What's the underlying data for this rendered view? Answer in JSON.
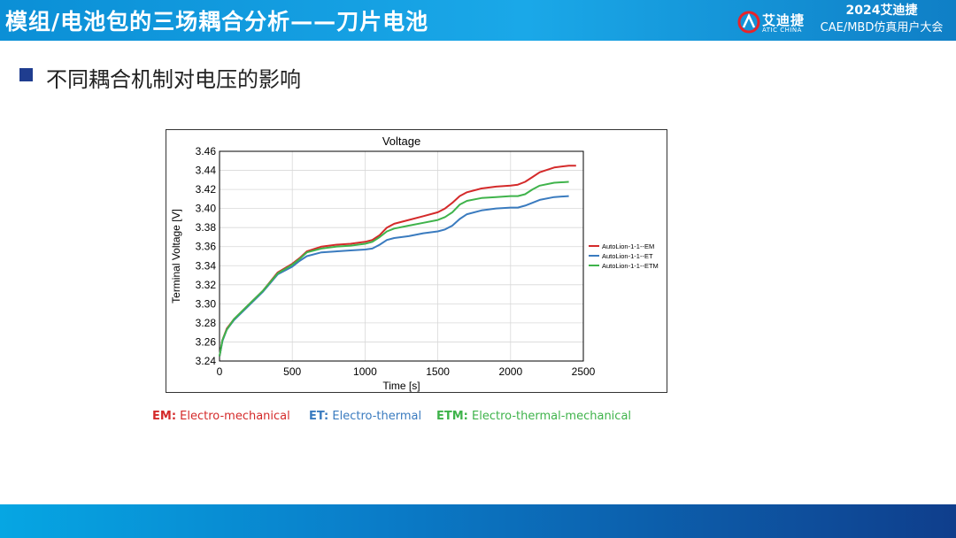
{
  "header": {
    "title": "模组/电池包的三场耦合分析——刀片电池",
    "logo_cn": "艾迪捷",
    "logo_en": "ATIC CHINA",
    "conference_year": "2024艾迪捷",
    "conference_name": "CAE/MBD仿真用户大会"
  },
  "section": {
    "heading": "不同耦合机制对电压的影响"
  },
  "colors": {
    "em": "#d42a2a",
    "et": "#3a7bbf",
    "etm": "#3fb34b",
    "header_blue": "#1aa8e8",
    "bullet": "#1f3d8f"
  },
  "notes": [
    {
      "abbr": "EM:",
      "text": "Electro-mechanical",
      "color": "#d42a2a"
    },
    {
      "abbr": "ET:",
      "text": "Electro-thermal",
      "color": "#3a7bbf"
    },
    {
      "abbr": "ETM:",
      "text": "Electro-thermal-mechanical",
      "color": "#3fb34b"
    }
  ],
  "chart_data": {
    "type": "line",
    "title": "Voltage",
    "xlabel": "Time [s]",
    "ylabel": "Terminal Voltage [V]",
    "xlim": [
      0,
      2500
    ],
    "ylim": [
      3.24,
      3.46
    ],
    "xticks": [
      "0",
      "500",
      "1000",
      "1500",
      "2000",
      "2500"
    ],
    "yticks": [
      "3.24",
      "3.26",
      "3.28",
      "3.30",
      "3.32",
      "3.34",
      "3.36",
      "3.38",
      "3.40",
      "3.42",
      "3.44",
      "3.46"
    ],
    "grid": true,
    "legend_position": "right",
    "x": [
      0,
      20,
      50,
      100,
      200,
      300,
      400,
      500,
      550,
      600,
      700,
      800,
      900,
      1000,
      1050,
      1100,
      1150,
      1200,
      1300,
      1400,
      1500,
      1550,
      1600,
      1650,
      1700,
      1800,
      1900,
      2000,
      2050,
      2100,
      2150,
      2200,
      2300,
      2400,
      2450
    ],
    "series": [
      {
        "name": "AutoLion-1-1--EM",
        "color": "#d42a2a",
        "values": [
          3.245,
          3.262,
          3.274,
          3.284,
          3.299,
          3.314,
          3.333,
          3.342,
          3.348,
          3.355,
          3.36,
          3.362,
          3.363,
          3.365,
          3.367,
          3.372,
          3.38,
          3.384,
          3.388,
          3.392,
          3.396,
          3.4,
          3.406,
          3.413,
          3.417,
          3.421,
          3.423,
          3.424,
          3.425,
          3.428,
          3.433,
          3.438,
          3.443,
          3.445,
          3.445
        ]
      },
      {
        "name": "AutoLion-1-1--ET",
        "color": "#3a7bbf",
        "values": [
          3.245,
          3.261,
          3.273,
          3.283,
          3.298,
          3.313,
          3.331,
          3.339,
          3.345,
          3.35,
          3.354,
          3.355,
          3.356,
          3.357,
          3.358,
          3.362,
          3.367,
          3.369,
          3.371,
          3.374,
          3.376,
          3.378,
          3.382,
          3.389,
          3.394,
          3.398,
          3.4,
          3.401,
          3.401,
          3.403,
          3.406,
          3.409,
          3.412,
          3.413,
          null
        ]
      },
      {
        "name": "AutoLion-1-1--ETM",
        "color": "#3fb34b",
        "values": [
          3.245,
          3.262,
          3.273,
          3.284,
          3.299,
          3.314,
          3.332,
          3.341,
          3.347,
          3.354,
          3.358,
          3.36,
          3.361,
          3.363,
          3.365,
          3.37,
          3.376,
          3.379,
          3.382,
          3.385,
          3.388,
          3.391,
          3.396,
          3.404,
          3.408,
          3.411,
          3.412,
          3.413,
          3.413,
          3.415,
          3.42,
          3.424,
          3.427,
          3.428,
          null
        ]
      }
    ]
  }
}
